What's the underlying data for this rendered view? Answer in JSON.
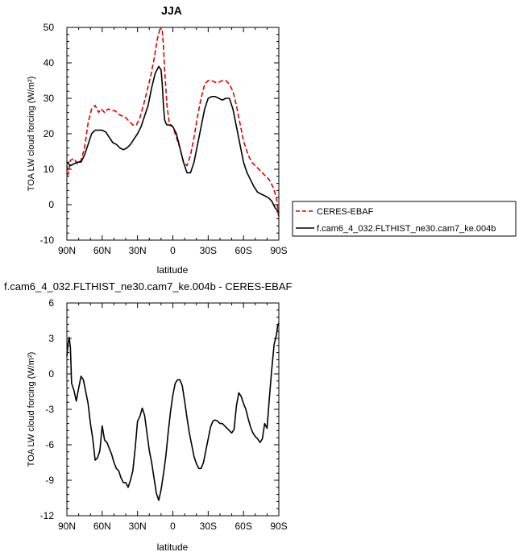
{
  "chart_data": [
    {
      "type": "line",
      "title": "JJA",
      "xlabel": "latitude",
      "ylabel": "TOA LW cloud forcing (W/m²)",
      "xlim": [
        90,
        -90
      ],
      "ylim": [
        -10,
        50
      ],
      "x_ticks": [
        90,
        60,
        30,
        0,
        -30,
        -60,
        -90
      ],
      "x_tick_labels": [
        "90N",
        "60N",
        "30N",
        "0",
        "30S",
        "60S",
        "90S"
      ],
      "y_ticks": [
        -10,
        0,
        10,
        20,
        30,
        40,
        50
      ],
      "y_tick_labels": [
        "-10",
        "0",
        "10",
        "20",
        "30",
        "40",
        "50"
      ],
      "legend": {
        "placement": "right",
        "entries": [
          "CERES-EBAF",
          "f.cam6_4_032.FLTHIST_ne30.cam7_ke.004b"
        ]
      },
      "series": [
        {
          "name": "CERES-EBAF",
          "color": "#dd0000",
          "dash": "dashed",
          "x": [
            90,
            89,
            87,
            84,
            81,
            78,
            75,
            72,
            69,
            66,
            63,
            61,
            58,
            55,
            52,
            49,
            46,
            43,
            40,
            37,
            34,
            31,
            28,
            25,
            22,
            19,
            16,
            13,
            11,
            9,
            8,
            7,
            5,
            3,
            0,
            -3,
            -6,
            -9,
            -12,
            -15,
            -18,
            -21,
            -24,
            -27,
            -30,
            -33,
            -36,
            -39,
            -42,
            -45,
            -48,
            -51,
            -54,
            -57,
            -60,
            -62,
            -64,
            -67,
            -70,
            -73,
            -76,
            -79,
            -82,
            -85,
            -88,
            -90
          ],
          "y": [
            11,
            8.5,
            12.5,
            13,
            11.5,
            12.5,
            16,
            23,
            27,
            28,
            26,
            27,
            26,
            27,
            26.5,
            26.5,
            25.5,
            25,
            24.5,
            23.5,
            22.5,
            22.5,
            24.5,
            28,
            32,
            36,
            41,
            47,
            49.5,
            49,
            45,
            38,
            28,
            23,
            22,
            19,
            16,
            12,
            11,
            14,
            19,
            25,
            30,
            34,
            35,
            35,
            34.5,
            34.5,
            35,
            35,
            34,
            32,
            28,
            23,
            18,
            16,
            14,
            12,
            11,
            10,
            9,
            8,
            7,
            5,
            2,
            -4
          ]
        },
        {
          "name": "f.cam6_4_032.FLTHIST_ne30.cam7_ke.004b",
          "color": "#000000",
          "dash": "solid",
          "x": [
            90,
            87,
            84,
            81,
            78,
            75,
            72,
            69,
            66,
            63,
            60,
            57,
            54,
            51,
            48,
            45,
            42,
            39,
            36,
            33,
            30,
            27,
            24,
            21,
            18,
            15,
            12,
            10,
            9,
            8,
            7,
            6,
            5,
            3,
            0,
            -3,
            -6,
            -9,
            -12,
            -15,
            -18,
            -21,
            -24,
            -27,
            -30,
            -33,
            -36,
            -39,
            -42,
            -45,
            -48,
            -51,
            -54,
            -57,
            -60,
            -63,
            -66,
            -69,
            -72,
            -75,
            -78,
            -81,
            -84,
            -87,
            -90
          ],
          "y": [
            12,
            11,
            11.5,
            12,
            12,
            14,
            17,
            20,
            21,
            21,
            21,
            20.5,
            19,
            17.5,
            17,
            16,
            15.5,
            16,
            17,
            18.5,
            20,
            22,
            25,
            28,
            33,
            37,
            39,
            38,
            34,
            28,
            24,
            23,
            22.5,
            22.5,
            22,
            20,
            16,
            12,
            9,
            9,
            12,
            17,
            22,
            27,
            30,
            30.5,
            30.5,
            30,
            29.5,
            30,
            30,
            27,
            22,
            17,
            12,
            9,
            7,
            5,
            3.5,
            3,
            2.5,
            2,
            1,
            -1,
            -2
          ]
        }
      ]
    },
    {
      "type": "line",
      "title": "f.cam6_4_032.FLTHIST_ne30.cam7_ke.004b - CERES-EBAF",
      "xlabel": "latitude",
      "ylabel": "TOA LW cloud forcing (W/m²)",
      "xlim": [
        90,
        -90
      ],
      "ylim": [
        -12,
        6
      ],
      "x_ticks": [
        90,
        60,
        30,
        0,
        -30,
        -60,
        -90
      ],
      "x_tick_labels": [
        "90N",
        "60N",
        "30N",
        "0",
        "30S",
        "60S",
        "90S"
      ],
      "y_ticks": [
        -12,
        -9,
        -6,
        -3,
        0,
        3,
        6
      ],
      "y_tick_labels": [
        "-12",
        "-9",
        "-6",
        "-3",
        "0",
        "3",
        "6"
      ],
      "series": [
        {
          "color": "#000000",
          "dash": "solid",
          "x": [
            90,
            89,
            88,
            87,
            86,
            84,
            82,
            80,
            78,
            76,
            74,
            72,
            70,
            68,
            66,
            64,
            62,
            60,
            58,
            56,
            54,
            52,
            50,
            48,
            46,
            44,
            42,
            40,
            38,
            36,
            34,
            32,
            30,
            28,
            26,
            24,
            22,
            20,
            18,
            16,
            14,
            12,
            10,
            8,
            6,
            4,
            2,
            0,
            -2,
            -4,
            -6,
            -8,
            -10,
            -12,
            -14,
            -16,
            -18,
            -20,
            -22,
            -24,
            -26,
            -28,
            -30,
            -32,
            -34,
            -36,
            -38,
            -40,
            -42,
            -44,
            -46,
            -48,
            -50,
            -52,
            -54,
            -56,
            -58,
            -60,
            -62,
            -64,
            -66,
            -68,
            -70,
            -72,
            -74,
            -76,
            -78,
            -80,
            -82,
            -84,
            -86,
            -88,
            -89,
            -90
          ],
          "y": [
            1.5,
            2.6,
            3.1,
            2.2,
            -0.8,
            -1.4,
            -2.3,
            -1.2,
            -0.2,
            -0.5,
            -1.5,
            -2.5,
            -4.2,
            -5.5,
            -7.3,
            -7.1,
            -6.5,
            -4.4,
            -5.6,
            -5.8,
            -6.3,
            -6.8,
            -7.5,
            -8.0,
            -8.2,
            -8.8,
            -9.2,
            -9.2,
            -9.6,
            -9.0,
            -8.2,
            -6.3,
            -4.0,
            -3.6,
            -2.9,
            -3.5,
            -5.0,
            -6.5,
            -7.5,
            -8.8,
            -10.1,
            -10.7,
            -9.8,
            -8.5,
            -7.0,
            -5.0,
            -3.2,
            -1.8,
            -0.8,
            -0.5,
            -0.5,
            -1.0,
            -2.3,
            -3.7,
            -5.0,
            -6.0,
            -7.0,
            -7.6,
            -8.0,
            -8.0,
            -7.5,
            -6.5,
            -5.5,
            -4.5,
            -4.0,
            -3.9,
            -4.0,
            -4.2,
            -4.2,
            -4.4,
            -4.6,
            -4.8,
            -5.0,
            -4.7,
            -2.7,
            -1.6,
            -1.9,
            -2.5,
            -3.0,
            -3.8,
            -4.5,
            -5.0,
            -5.3,
            -5.5,
            -5.8,
            -5.5,
            -4.2,
            -4.6,
            -2.0,
            0.4,
            2.5,
            3.3,
            4.1,
            4.3
          ]
        }
      ]
    }
  ]
}
